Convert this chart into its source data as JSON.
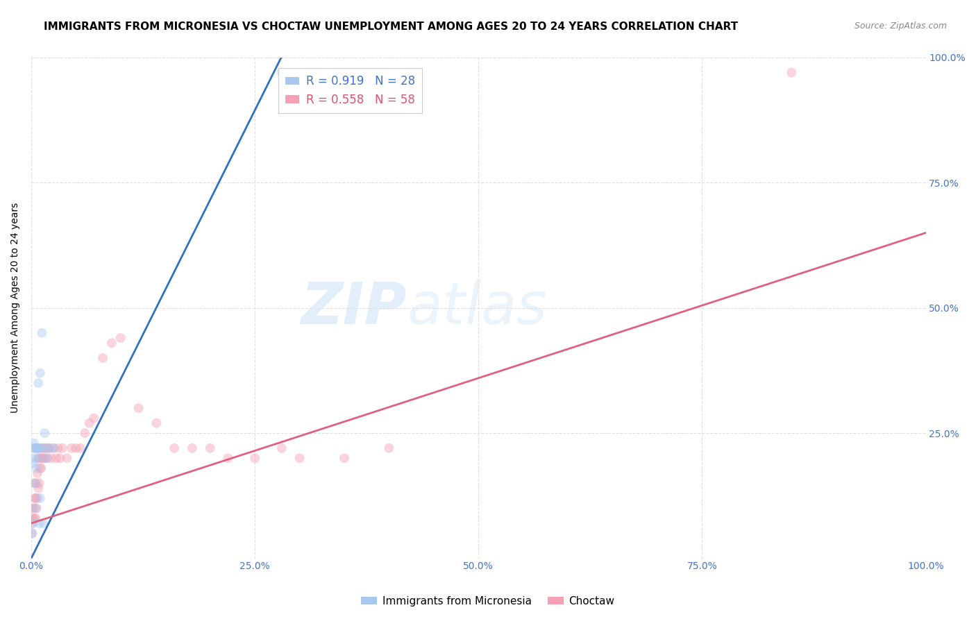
{
  "title": "IMMIGRANTS FROM MICRONESIA VS CHOCTAW UNEMPLOYMENT AMONG AGES 20 TO 24 YEARS CORRELATION CHART",
  "source": "Source: ZipAtlas.com",
  "ylabel": "Unemployment Among Ages 20 to 24 years",
  "xlim": [
    0,
    1.0
  ],
  "ylim": [
    0,
    1.0
  ],
  "xticks": [
    0.0,
    0.25,
    0.5,
    0.75,
    1.0
  ],
  "yticks": [
    0.0,
    0.25,
    0.5,
    0.75,
    1.0
  ],
  "xticklabels": [
    "0.0%",
    "25.0%",
    "50.0%",
    "75.0%",
    "100.0%"
  ],
  "yticklabels_right": [
    "",
    "25.0%",
    "50.0%",
    "75.0%",
    "100.0%"
  ],
  "watermark_zip": "ZIP",
  "watermark_atlas": "atlas",
  "blue_scatter_x": [
    0.001,
    0.002,
    0.002,
    0.003,
    0.003,
    0.003,
    0.004,
    0.004,
    0.005,
    0.005,
    0.006,
    0.006,
    0.007,
    0.007,
    0.008,
    0.008,
    0.009,
    0.01,
    0.01,
    0.011,
    0.012,
    0.013,
    0.014,
    0.015,
    0.017,
    0.02,
    0.025,
    0.28
  ],
  "blue_scatter_y": [
    0.05,
    0.07,
    0.19,
    0.2,
    0.22,
    0.23,
    0.15,
    0.22,
    0.1,
    0.22,
    0.18,
    0.22,
    0.2,
    0.22,
    0.35,
    0.22,
    0.07,
    0.37,
    0.12,
    0.22,
    0.45,
    0.07,
    0.22,
    0.25,
    0.2,
    0.22,
    0.22,
    0.97
  ],
  "pink_scatter_x": [
    0.001,
    0.001,
    0.002,
    0.002,
    0.003,
    0.003,
    0.004,
    0.004,
    0.005,
    0.005,
    0.006,
    0.006,
    0.007,
    0.007,
    0.008,
    0.008,
    0.009,
    0.009,
    0.01,
    0.01,
    0.011,
    0.012,
    0.013,
    0.014,
    0.015,
    0.016,
    0.018,
    0.019,
    0.02,
    0.022,
    0.025,
    0.028,
    0.03,
    0.032,
    0.035,
    0.04,
    0.045,
    0.05,
    0.055,
    0.06,
    0.065,
    0.07,
    0.08,
    0.09,
    0.1,
    0.12,
    0.14,
    0.16,
    0.18,
    0.2,
    0.22,
    0.25,
    0.28,
    0.3,
    0.35,
    0.4,
    0.85
  ],
  "pink_scatter_y": [
    0.05,
    0.07,
    0.08,
    0.1,
    0.08,
    0.1,
    0.12,
    0.15,
    0.08,
    0.12,
    0.1,
    0.15,
    0.12,
    0.17,
    0.14,
    0.2,
    0.15,
    0.2,
    0.18,
    0.22,
    0.18,
    0.2,
    0.2,
    0.22,
    0.2,
    0.22,
    0.2,
    0.22,
    0.22,
    0.2,
    0.22,
    0.2,
    0.22,
    0.2,
    0.22,
    0.2,
    0.22,
    0.22,
    0.22,
    0.25,
    0.27,
    0.28,
    0.4,
    0.43,
    0.44,
    0.3,
    0.27,
    0.22,
    0.22,
    0.22,
    0.2,
    0.2,
    0.22,
    0.2,
    0.2,
    0.22,
    0.97
  ],
  "blue_line_x": [
    0.0,
    0.285
  ],
  "blue_line_y": [
    0.0,
    1.02
  ],
  "pink_line_x": [
    0.0,
    1.0
  ],
  "pink_line_y": [
    0.07,
    0.65
  ],
  "scatter_size": 100,
  "scatter_alpha": 0.45,
  "blue_color": "#a8c8f0",
  "pink_color": "#f4a0b5",
  "blue_line_color": "#3070c0",
  "pink_line_color": "#e06080",
  "grid_color": "#d8d8d8",
  "background_color": "#ffffff",
  "title_fontsize": 11,
  "tick_fontsize": 10,
  "source_fontsize": 9,
  "legend_fontsize": 12,
  "blue_text_color": "#4472c4",
  "pink_text_color": "#e05070"
}
